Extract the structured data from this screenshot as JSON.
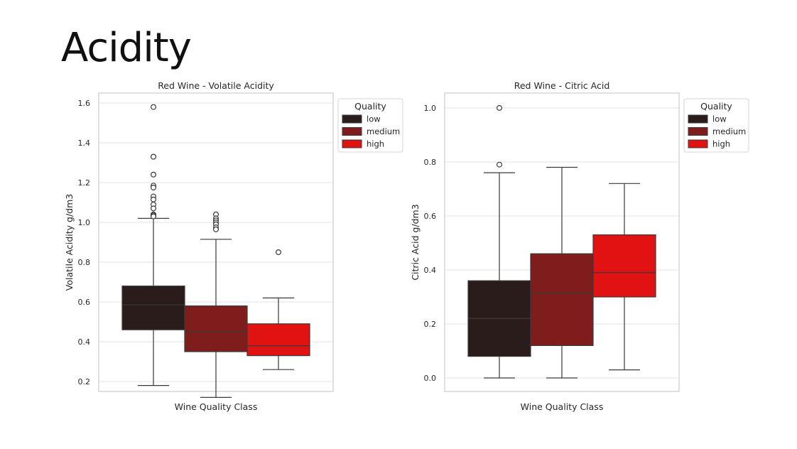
{
  "slide": {
    "title": "Acidity"
  },
  "colors": {
    "low": "#2b1c1c",
    "medium": "#7f1d1d",
    "high": "#e01212",
    "grid": "#e3e3e3",
    "frame": "#cccccc",
    "line": "#3a3a3a"
  },
  "chart_data": [
    {
      "type": "box",
      "title": "Red Wine - Volatile Acidity",
      "xlabel": "Wine Quality Class",
      "ylabel": "Volatile Acidity g/dm3",
      "ylim": [
        0.15,
        1.65
      ],
      "yticks": [
        "0.2",
        "0.4",
        "0.6",
        "0.8",
        "1.0",
        "1.2",
        "1.4",
        "1.6"
      ],
      "legend": {
        "title": "Quality",
        "position": "upper-right",
        "entries": [
          "low",
          "medium",
          "high"
        ]
      },
      "categories": [
        "low",
        "medium",
        "high"
      ],
      "boxes": [
        {
          "name": "low",
          "whisker_low": 0.18,
          "q1": 0.46,
          "median": 0.585,
          "q3": 0.68,
          "whisker_high": 1.02,
          "outliers": [
            1.58,
            1.33,
            1.33,
            1.24,
            1.185,
            1.175,
            1.13,
            1.115,
            1.09,
            1.07,
            1.04,
            1.035,
            1.03
          ]
        },
        {
          "name": "medium",
          "whisker_low": 0.12,
          "q1": 0.35,
          "median": 0.45,
          "q3": 0.58,
          "whisker_high": 0.915,
          "outliers": [
            1.04,
            1.02,
            1.01,
            1.0,
            0.99,
            0.975,
            0.965
          ]
        },
        {
          "name": "high",
          "whisker_low": 0.26,
          "q1": 0.33,
          "median": 0.38,
          "q3": 0.49,
          "whisker_high": 0.62,
          "outliers": [
            0.85
          ]
        }
      ]
    },
    {
      "type": "box",
      "title": "Red Wine - Citric Acid",
      "xlabel": "Wine Quality Class",
      "ylabel": "Citric Acid g/dm3",
      "ylim": [
        -0.05,
        1.055
      ],
      "yticks": [
        "0.0",
        "0.2",
        "0.4",
        "0.6",
        "0.8",
        "1.0"
      ],
      "legend": {
        "title": "Quality",
        "position": "upper-right",
        "entries": [
          "low",
          "medium",
          "high"
        ]
      },
      "categories": [
        "low",
        "medium",
        "high"
      ],
      "boxes": [
        {
          "name": "low",
          "whisker_low": 0.0,
          "q1": 0.08,
          "median": 0.22,
          "q3": 0.36,
          "whisker_high": 0.76,
          "outliers": [
            1.0,
            0.79
          ]
        },
        {
          "name": "medium",
          "whisker_low": 0.0,
          "q1": 0.12,
          "median": 0.315,
          "q3": 0.46,
          "whisker_high": 0.78,
          "outliers": []
        },
        {
          "name": "high",
          "whisker_low": 0.03,
          "q1": 0.3,
          "median": 0.39,
          "q3": 0.53,
          "whisker_high": 0.72,
          "outliers": []
        }
      ]
    }
  ]
}
